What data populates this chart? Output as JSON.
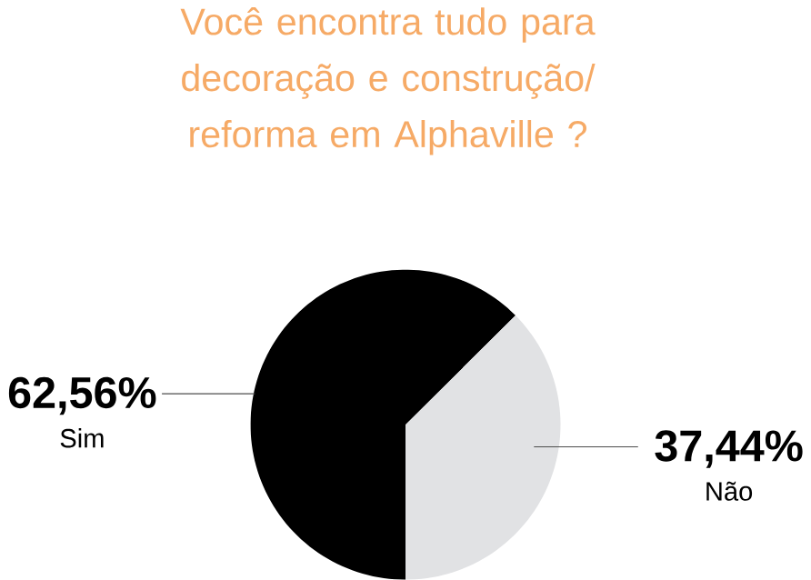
{
  "chart_data": {
    "type": "pie",
    "title": "Você encontra tudo para decoração e construção/ reforma em Alphaville ?",
    "categories": [
      "Sim",
      "Não"
    ],
    "values": [
      62.56,
      37.44
    ],
    "colors": [
      "#000000",
      "#e1e2e4"
    ],
    "value_labels": [
      "62,56%",
      "37,44%"
    ]
  }
}
